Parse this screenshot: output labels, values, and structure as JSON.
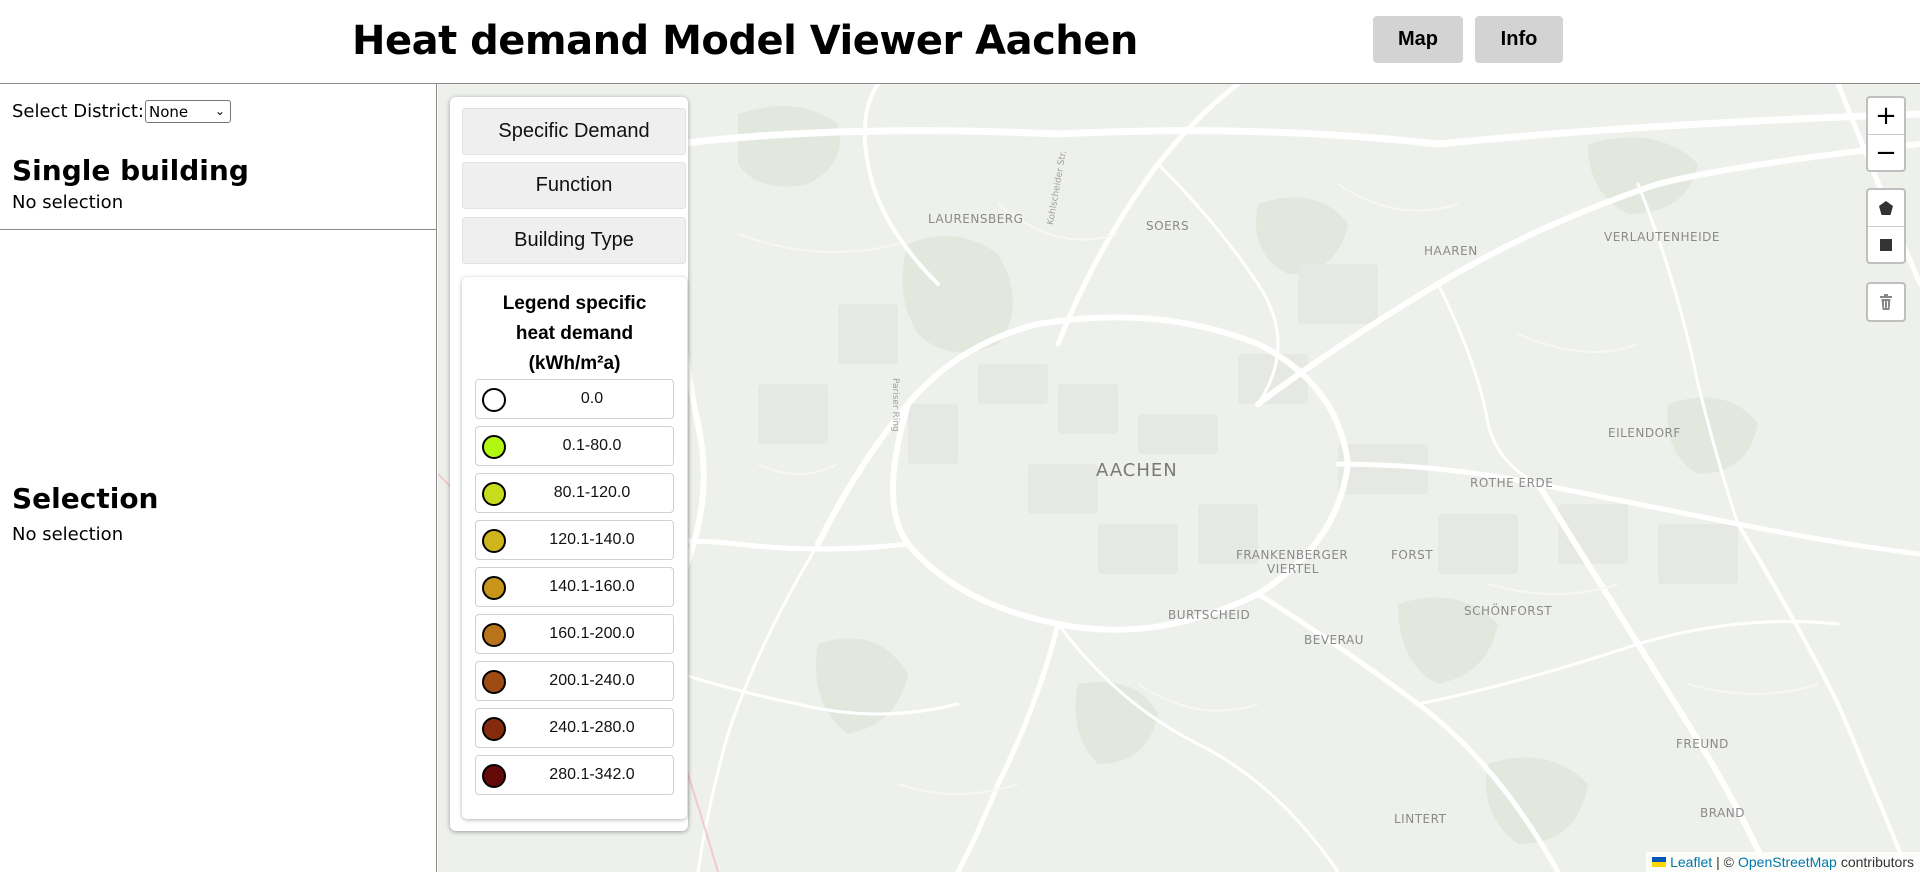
{
  "header": {
    "title": "Heat demand Model Viewer Aachen",
    "nav": {
      "map_label": "Map",
      "info_label": "Info"
    }
  },
  "sidebar": {
    "district_label": "Select District:",
    "district_selected": "None",
    "single_building": {
      "title": "Single building",
      "value": "No selection"
    },
    "selection": {
      "title": "Selection",
      "value": "No selection"
    }
  },
  "panel": {
    "buttons": {
      "specific": "Specific Demand",
      "function": "Function",
      "type": "Building Type"
    },
    "legend": {
      "title_lines": [
        "Legend specific",
        "heat demand",
        "(kWh/m²a)"
      ],
      "items": [
        {
          "label": "0.0",
          "color": "#ffffff"
        },
        {
          "label": "0.1-80.0",
          "color": "#b2f712"
        },
        {
          "label": "80.1-120.0",
          "color": "#c6dc1c"
        },
        {
          "label": "120.1-140.0",
          "color": "#cfb51c"
        },
        {
          "label": "140.1-160.0",
          "color": "#c8951a"
        },
        {
          "label": "160.1-200.0",
          "color": "#b8741a"
        },
        {
          "label": "200.1-240.0",
          "color": "#9f4c14"
        },
        {
          "label": "240.1-280.0",
          "color": "#842b0e"
        },
        {
          "label": "280.1-342.0",
          "color": "#650808"
        }
      ]
    }
  },
  "map": {
    "places": {
      "aachen": "AACHEN",
      "laurensberg": "LAURENSBERG",
      "soers": "SOERS",
      "haaren": "HAAREN",
      "verlautenheide": "VERLAUTENHEIDE",
      "eilendorf": "EILENDORF",
      "rothe_erde": "ROTHE ERDE",
      "frankenberger_1": "FRANKENBERGER",
      "frankenberger_2": "VIERTEL",
      "forst": "FORST",
      "burtscheid": "BURTSCHEID",
      "beverau": "BEVERAU",
      "schoenforst": "SCHÖNFORST",
      "freund": "FREUND",
      "lintert": "LINTERT",
      "brand": "BRAND"
    },
    "streets": {
      "kohlscheider": "Kohlscheider Str.",
      "pariser": "Pariser Ring"
    },
    "controls": {
      "zoom_in": "+",
      "zoom_out": "−"
    },
    "attribution": {
      "leaflet": "Leaflet",
      "separator": "| ©",
      "osm": "OpenStreetMap",
      "contributors": "contributors"
    },
    "colors": {
      "background": "#eef0ec",
      "road": "#ffffff",
      "park": "#e3e8df"
    }
  }
}
